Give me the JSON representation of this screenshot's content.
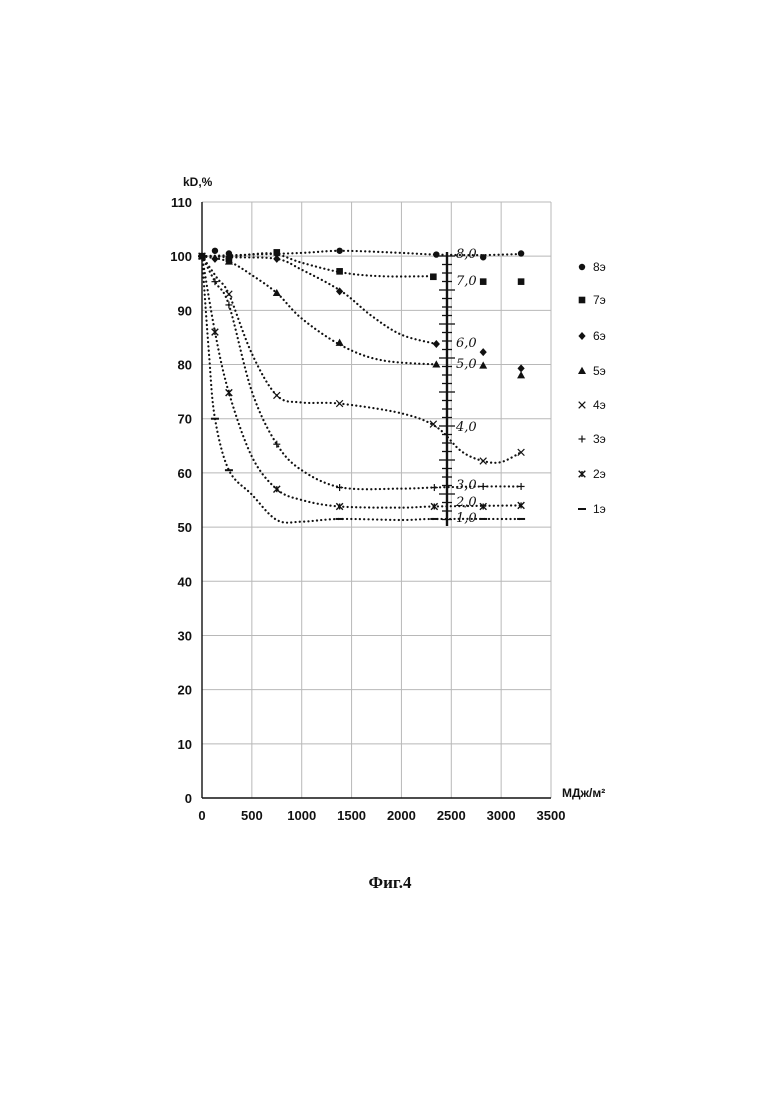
{
  "chart_data": {
    "type": "scatter",
    "title": "",
    "xlabel": "МДж/м²",
    "ylabel": "kD,%",
    "xlim": [
      0,
      3500
    ],
    "ylim": [
      0,
      110
    ],
    "xticks": [
      0,
      500,
      1000,
      1500,
      2000,
      2500,
      3000,
      3500
    ],
    "yticks": [
      0,
      10,
      20,
      30,
      40,
      50,
      60,
      70,
      80,
      90,
      100,
      110
    ],
    "grid": true,
    "legend_position": "right",
    "series": [
      {
        "name": "8э",
        "marker": "circle",
        "x": [
          0,
          130,
          270,
          750,
          1380,
          2350,
          2820,
          3200
        ],
        "y": [
          100,
          101,
          100.5,
          100.5,
          101,
          100.3,
          99.8,
          100.5
        ],
        "trend": [
          [
            0,
            100
          ],
          [
            500,
            100.3
          ],
          [
            1000,
            100.6
          ],
          [
            1400,
            101
          ],
          [
            2000,
            100.6
          ],
          [
            2350,
            100.3
          ],
          [
            2800,
            100.2
          ],
          [
            3200,
            100.4
          ]
        ]
      },
      {
        "name": "7э",
        "marker": "square",
        "x": [
          0,
          270,
          750,
          1380,
          2320,
          2820,
          3200
        ],
        "y": [
          100,
          99.5,
          100.7,
          97.2,
          96.2,
          95.3,
          95.3
        ],
        "trend": [
          [
            0,
            100
          ],
          [
            300,
            100
          ],
          [
            700,
            100.5
          ],
          [
            1000,
            98.8
          ],
          [
            1400,
            97
          ],
          [
            1800,
            96.3
          ],
          [
            2300,
            96.3
          ]
        ]
      },
      {
        "name": "6э",
        "marker": "diamond",
        "x": [
          0,
          130,
          270,
          750,
          1380,
          2350,
          2820,
          3200
        ],
        "y": [
          100,
          99.5,
          99.5,
          99.5,
          93.5,
          83.8,
          82.3,
          79.3
        ],
        "trend": [
          [
            0,
            100
          ],
          [
            300,
            99.8
          ],
          [
            750,
            99.5
          ],
          [
            1000,
            97.5
          ],
          [
            1400,
            93.5
          ],
          [
            1700,
            89
          ],
          [
            2000,
            85.5
          ],
          [
            2350,
            83.8
          ]
        ]
      },
      {
        "name": "5э",
        "marker": "triangle",
        "x": [
          0,
          270,
          750,
          1380,
          2350,
          2820,
          3200
        ],
        "y": [
          100,
          99,
          93.2,
          84,
          80,
          79.8,
          78
        ],
        "trend": [
          [
            0,
            100
          ],
          [
            270,
            99
          ],
          [
            500,
            96.5
          ],
          [
            750,
            93.2
          ],
          [
            1000,
            88.5
          ],
          [
            1400,
            83.5
          ],
          [
            1800,
            80.8
          ],
          [
            2350,
            80
          ]
        ]
      },
      {
        "name": "4э",
        "marker": "x",
        "x": [
          0,
          270,
          750,
          1380,
          2320,
          2820,
          3200
        ],
        "y": [
          100,
          93,
          74.3,
          72.8,
          69,
          62.2,
          63.8
        ],
        "trend": [
          [
            0,
            100
          ],
          [
            150,
            96
          ],
          [
            270,
            93
          ],
          [
            500,
            82
          ],
          [
            750,
            74.3
          ],
          [
            1000,
            73
          ],
          [
            1380,
            72.8
          ],
          [
            2000,
            71
          ],
          [
            2350,
            68.5
          ],
          [
            2600,
            64
          ],
          [
            2820,
            62.2
          ],
          [
            3000,
            62
          ],
          [
            3200,
            63.8
          ]
        ]
      },
      {
        "name": "3э",
        "marker": "plus",
        "x": [
          0,
          130,
          270,
          750,
          1380,
          2330,
          2820,
          3200
        ],
        "y": [
          100,
          95.3,
          91,
          65.3,
          57.3,
          57.3,
          57.5,
          57.5
        ],
        "trend": [
          [
            0,
            100
          ],
          [
            130,
            95.3
          ],
          [
            270,
            91
          ],
          [
            500,
            75
          ],
          [
            750,
            65.3
          ],
          [
            1000,
            60.5
          ],
          [
            1400,
            57.3
          ],
          [
            2000,
            57.1
          ],
          [
            2330,
            57.3
          ],
          [
            2820,
            57.5
          ],
          [
            3200,
            57.5
          ]
        ]
      },
      {
        "name": "2э",
        "marker": "asterisk",
        "x": [
          0,
          130,
          270,
          750,
          1380,
          2330,
          2820,
          3200
        ],
        "y": [
          100,
          86,
          74.8,
          57,
          53.8,
          53.8,
          53.8,
          54
        ],
        "trend": [
          [
            0,
            100
          ],
          [
            130,
            86
          ],
          [
            270,
            74.8
          ],
          [
            500,
            63
          ],
          [
            750,
            57
          ],
          [
            1000,
            55
          ],
          [
            1380,
            53.8
          ],
          [
            2000,
            53.6
          ],
          [
            2330,
            53.8
          ],
          [
            3200,
            54
          ]
        ]
      },
      {
        "name": "1э",
        "marker": "dash",
        "x": [
          0,
          130,
          270,
          1380,
          2330,
          2820,
          3200
        ],
        "y": [
          100,
          70,
          60.5,
          51.5,
          51.5,
          51.5,
          51.5
        ],
        "trend": [
          [
            0,
            100
          ],
          [
            70,
            82
          ],
          [
            130,
            70
          ],
          [
            270,
            60.5
          ],
          [
            500,
            56
          ],
          [
            750,
            51.3
          ],
          [
            1000,
            51
          ],
          [
            1380,
            51.5
          ],
          [
            2000,
            51.3
          ],
          [
            2330,
            51.5
          ],
          [
            3200,
            51.5
          ]
        ]
      }
    ],
    "annotations": [
      "8,0",
      "7,0",
      "6,0",
      "5,0",
      "4,0",
      "3,0",
      "2,0",
      "1,0"
    ]
  },
  "caption": "Фиг.4"
}
